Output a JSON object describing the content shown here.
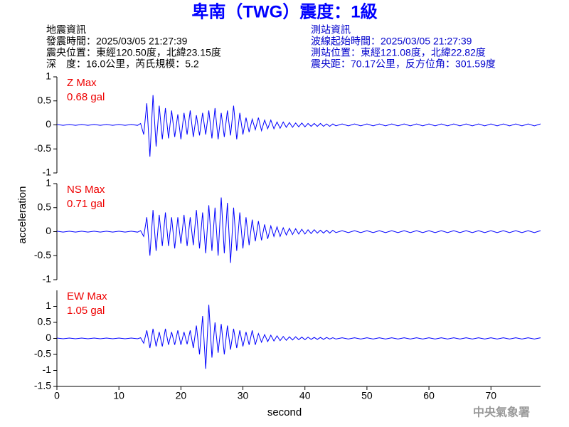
{
  "header": {
    "title": "卑南（TWG）震度：1級",
    "left": [
      "地震資訊",
      "發震時間：2025/03/05 21:27:39",
      "震央位置：東經120.50度，北緯23.15度",
      "深　度：16.0公里，芮氏規模：5.2"
    ],
    "right": [
      "測站資訊",
      "波線起始時間：2025/03/05 21:27:39",
      "測站位置：東經121.08度，北緯22.82度",
      "震央距：70.17公里，反方位角：301.59度"
    ]
  },
  "footer": "中央氣象署",
  "chart_data": {
    "type": "line",
    "xlabel": "second",
    "ylabel": "acceleration",
    "xlim": [
      0,
      78
    ],
    "xticks": [
      0,
      10,
      20,
      30,
      40,
      50,
      60,
      70
    ],
    "x": [
      0,
      1,
      2,
      3,
      4,
      5,
      6,
      7,
      8,
      9,
      10,
      11,
      12,
      13,
      13.5,
      14,
      14.5,
      15,
      15.5,
      16,
      16.5,
      17,
      17.5,
      18,
      18.5,
      19,
      19.5,
      20,
      20.5,
      21,
      21.5,
      22,
      22.5,
      23,
      23.5,
      24,
      24.5,
      25,
      25.5,
      26,
      26.5,
      27,
      27.5,
      28,
      28.5,
      29,
      29.5,
      30,
      30.5,
      31,
      31.5,
      32,
      32.5,
      33,
      33.5,
      34,
      34.5,
      35,
      35.5,
      36,
      36.5,
      37,
      37.5,
      38,
      38.5,
      39,
      39.5,
      40,
      40.5,
      41,
      41.5,
      42,
      42.5,
      43,
      43.5,
      44,
      44.5,
      45,
      46,
      47,
      48,
      49,
      50,
      51,
      52,
      53,
      54,
      55,
      56,
      57,
      58,
      59,
      60,
      61,
      62,
      63,
      64,
      65,
      66,
      67,
      68,
      69,
      70,
      71,
      72,
      73,
      74,
      75,
      76,
      77,
      78
    ],
    "series": [
      {
        "name": "Z Max",
        "max_label": "0.68 gal",
        "color": "#0000ff",
        "ylim": [
          -1,
          1
        ],
        "yticks": [
          -1,
          -0.5,
          0,
          0.5,
          1
        ],
        "values": [
          0.01,
          -0.01,
          0.01,
          -0.01,
          0.01,
          -0.01,
          0.01,
          -0.01,
          0.01,
          -0.01,
          0.01,
          -0.01,
          0.01,
          -0.01,
          0.03,
          -0.2,
          0.45,
          -0.66,
          0.62,
          -0.45,
          0.4,
          -0.3,
          0.35,
          -0.28,
          0.3,
          -0.25,
          0.22,
          -0.3,
          0.25,
          -0.2,
          0.3,
          -0.25,
          0.2,
          -0.22,
          0.25,
          -0.2,
          0.3,
          -0.28,
          0.35,
          -0.3,
          0.25,
          -0.25,
          0.3,
          -0.22,
          0.4,
          -0.3,
          0.25,
          -0.2,
          0.15,
          -0.15,
          0.12,
          -0.1,
          0.15,
          -0.12,
          0.1,
          -0.08,
          0.1,
          -0.08,
          0.06,
          -0.07,
          0.06,
          -0.05,
          0.05,
          -0.05,
          0.04,
          -0.04,
          0.04,
          -0.04,
          0.03,
          -0.03,
          0.03,
          -0.03,
          0.03,
          -0.03,
          0.02,
          -0.03,
          0.02,
          -0.02,
          0.02,
          -0.02,
          0.02,
          -0.02,
          0.02,
          -0.02,
          0.02,
          -0.02,
          0.02,
          -0.02,
          0.02,
          -0.02,
          0.02,
          -0.02,
          0.02,
          -0.02,
          0.02,
          -0.02,
          0.02,
          -0.02,
          0.02,
          -0.02,
          0.02,
          -0.02,
          0.02,
          -0.02,
          0.02,
          -0.02,
          0.02,
          -0.02,
          0.02,
          -0.02,
          0.02
        ]
      },
      {
        "name": "NS Max",
        "max_label": "0.71 gal",
        "color": "#0000ff",
        "ylim": [
          -1,
          1
        ],
        "yticks": [
          -1,
          -0.5,
          0,
          0.5,
          1
        ],
        "values": [
          0.01,
          -0.01,
          0.01,
          -0.01,
          0.01,
          -0.01,
          0.01,
          -0.01,
          0.01,
          -0.01,
          0.01,
          -0.01,
          0.01,
          -0.01,
          0.02,
          -0.1,
          0.3,
          -0.5,
          0.45,
          -0.4,
          0.35,
          -0.3,
          0.4,
          -0.3,
          0.3,
          -0.35,
          0.3,
          -0.25,
          0.35,
          -0.3,
          0.3,
          -0.28,
          0.45,
          -0.35,
          0.4,
          -0.45,
          0.55,
          -0.4,
          0.5,
          -0.5,
          0.71,
          -0.45,
          0.6,
          -0.65,
          0.5,
          -0.4,
          0.4,
          -0.35,
          0.3,
          -0.28,
          0.25,
          -0.2,
          0.22,
          -0.18,
          0.15,
          -0.15,
          0.12,
          -0.1,
          0.1,
          -0.1,
          0.08,
          -0.07,
          0.07,
          -0.06,
          0.06,
          -0.05,
          0.05,
          -0.05,
          0.04,
          -0.04,
          0.04,
          -0.03,
          0.03,
          -0.03,
          0.03,
          -0.03,
          0.03,
          -0.02,
          0.02,
          -0.02,
          0.02,
          -0.02,
          0.02,
          -0.02,
          0.02,
          -0.02,
          0.02,
          -0.02,
          0.02,
          -0.02,
          0.02,
          -0.02,
          0.02,
          -0.02,
          0.02,
          -0.02,
          0.02,
          -0.02,
          0.02,
          -0.02,
          0.02,
          -0.02,
          0.02,
          -0.02,
          0.02,
          -0.02,
          0.02,
          -0.02,
          0.02,
          -0.02,
          0.02
        ]
      },
      {
        "name": "EW Max",
        "max_label": "1.05 gal",
        "color": "#0000ff",
        "ylim": [
          -1.5,
          1.5
        ],
        "yticks": [
          -1.5,
          -1,
          -0.5,
          0,
          0.5,
          1
        ],
        "values": [
          0.01,
          -0.01,
          0.01,
          -0.01,
          0.01,
          -0.01,
          0.01,
          -0.01,
          0.01,
          -0.01,
          0.01,
          -0.01,
          0.01,
          -0.01,
          0.02,
          -0.15,
          0.25,
          -0.3,
          0.3,
          -0.25,
          0.2,
          -0.25,
          0.3,
          -0.2,
          0.2,
          -0.2,
          0.25,
          -0.2,
          0.2,
          -0.18,
          0.25,
          -0.3,
          0.4,
          -0.5,
          0.7,
          -0.95,
          1.05,
          -0.6,
          0.5,
          -0.45,
          0.45,
          -0.5,
          0.4,
          -0.35,
          0.3,
          -0.3,
          0.25,
          -0.25,
          0.2,
          -0.2,
          0.25,
          -0.2,
          0.15,
          -0.12,
          0.12,
          -0.1,
          0.1,
          -0.08,
          0.08,
          -0.07,
          0.06,
          -0.06,
          0.05,
          -0.05,
          0.05,
          -0.04,
          0.04,
          -0.04,
          0.04,
          -0.03,
          0.03,
          -0.03,
          0.03,
          -0.03,
          0.03,
          -0.02,
          0.02,
          -0.02,
          0.02,
          -0.02,
          0.02,
          -0.02,
          0.02,
          -0.02,
          0.02,
          -0.02,
          0.02,
          -0.02,
          0.02,
          -0.02,
          0.02,
          -0.02,
          0.02,
          -0.02,
          0.02,
          -0.02,
          0.02,
          -0.02,
          0.02,
          -0.02,
          0.02,
          -0.02,
          0.02,
          -0.02,
          0.02,
          -0.02,
          0.02,
          -0.02,
          0.02,
          -0.02,
          0.02
        ]
      }
    ]
  }
}
